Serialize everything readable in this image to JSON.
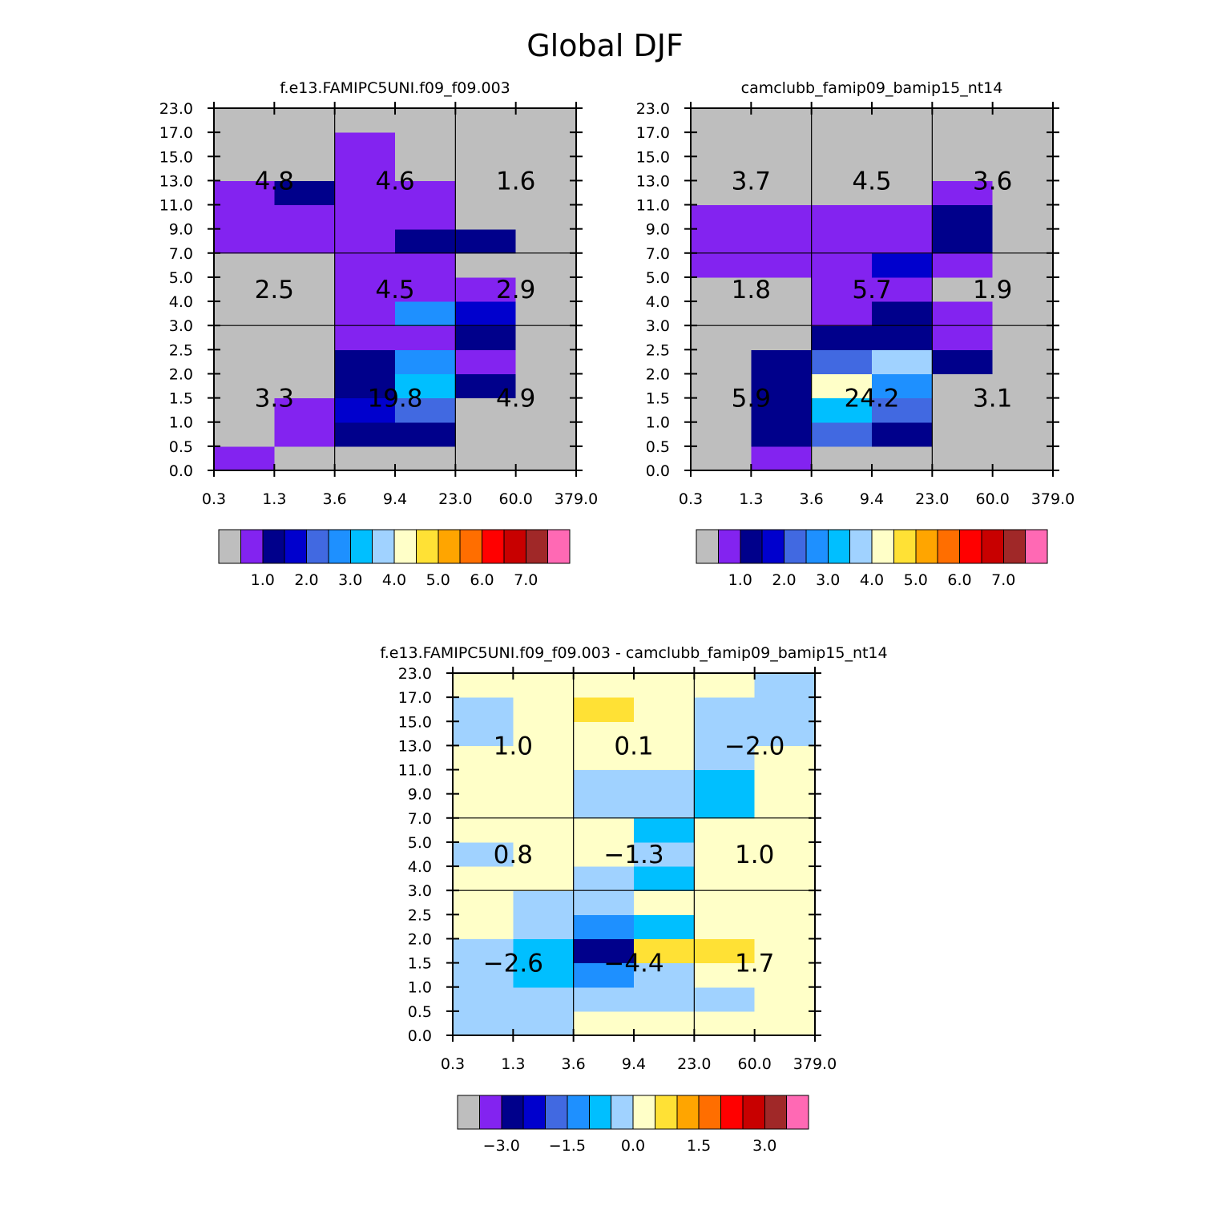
{
  "page_title": "Global DJF",
  "chart_data": [
    {
      "type": "heatmap",
      "title": "f.e13.FAMIPC5UNI.f09_f09.003",
      "x_ticks": [
        "0.3",
        "1.3",
        "3.6",
        "9.4",
        "23.0",
        "60.0",
        "379.0"
      ],
      "y_ticks": [
        "0.0",
        "0.5",
        "1.0",
        "1.5",
        "2.0",
        "2.5",
        "3.0",
        "4.0",
        "5.0",
        "7.0",
        "9.0",
        "11.0",
        "13.0",
        "15.0",
        "17.0",
        "23.0"
      ],
      "palette": [
        "#bebebe",
        "#8323f0",
        "#00008b",
        "#0000cd",
        "#4169e1",
        "#1e90ff",
        "#00bfff",
        "#a0d2ff",
        "#ffffc8",
        "#ffe135",
        "#ffa500",
        "#ff6e00",
        "#ff0000",
        "#c80000",
        "#a02828",
        "#ff69b4"
      ],
      "legend_labels": [
        "1.0",
        "2.0",
        "3.0",
        "4.0",
        "5.0",
        "6.0",
        "7.0"
      ],
      "grid": [
        [
          1,
          0,
          0,
          0,
          0,
          0
        ],
        [
          0,
          1,
          2,
          2,
          0,
          0
        ],
        [
          0,
          1,
          3,
          4,
          0,
          0
        ],
        [
          0,
          0,
          2,
          6,
          2,
          0
        ],
        [
          0,
          0,
          2,
          5,
          1,
          0
        ],
        [
          0,
          0,
          1,
          1,
          2,
          0
        ],
        [
          0,
          0,
          1,
          5,
          3,
          0
        ],
        [
          0,
          0,
          1,
          1,
          1,
          0
        ],
        [
          0,
          0,
          1,
          1,
          0,
          0
        ],
        [
          1,
          1,
          1,
          2,
          2,
          0
        ],
        [
          1,
          1,
          1,
          1,
          0,
          0
        ],
        [
          1,
          2,
          1,
          1,
          0,
          0
        ],
        [
          0,
          0,
          1,
          0,
          0,
          0
        ],
        [
          0,
          0,
          1,
          0,
          0,
          0
        ],
        [
          0,
          0,
          0,
          0,
          0,
          0
        ]
      ],
      "box_values": [
        [
          "4.8",
          "4.6",
          "1.6"
        ],
        [
          "2.5",
          "4.5",
          "2.9"
        ],
        [
          "3.3",
          "19.8",
          "4.9"
        ]
      ]
    },
    {
      "type": "heatmap",
      "title": "camclubb_famip09_bamip15_nt14",
      "x_ticks": [
        "0.3",
        "1.3",
        "3.6",
        "9.4",
        "23.0",
        "60.0",
        "379.0"
      ],
      "y_ticks": [
        "0.0",
        "0.5",
        "1.0",
        "1.5",
        "2.0",
        "2.5",
        "3.0",
        "4.0",
        "5.0",
        "7.0",
        "9.0",
        "11.0",
        "13.0",
        "15.0",
        "17.0",
        "23.0"
      ],
      "palette": [
        "#bebebe",
        "#8323f0",
        "#00008b",
        "#0000cd",
        "#4169e1",
        "#1e90ff",
        "#00bfff",
        "#a0d2ff",
        "#ffffc8",
        "#ffe135",
        "#ffa500",
        "#ff6e00",
        "#ff0000",
        "#c80000",
        "#a02828",
        "#ff69b4"
      ],
      "legend_labels": [
        "1.0",
        "2.0",
        "3.0",
        "4.0",
        "5.0",
        "6.0",
        "7.0"
      ],
      "grid": [
        [
          0,
          1,
          0,
          0,
          0,
          0
        ],
        [
          0,
          2,
          4,
          2,
          0,
          0
        ],
        [
          0,
          2,
          6,
          4,
          0,
          0
        ],
        [
          0,
          2,
          8,
          5,
          0,
          0
        ],
        [
          0,
          2,
          4,
          7,
          2,
          0
        ],
        [
          0,
          0,
          2,
          2,
          1,
          0
        ],
        [
          0,
          0,
          1,
          2,
          1,
          0
        ],
        [
          0,
          0,
          1,
          1,
          0,
          0
        ],
        [
          1,
          1,
          1,
          3,
          1,
          0
        ],
        [
          1,
          1,
          1,
          1,
          2,
          0
        ],
        [
          1,
          1,
          1,
          1,
          2,
          0
        ],
        [
          0,
          0,
          0,
          0,
          1,
          0
        ],
        [
          0,
          0,
          0,
          0,
          0,
          0
        ],
        [
          0,
          0,
          0,
          0,
          0,
          0
        ],
        [
          0,
          0,
          0,
          0,
          0,
          0
        ]
      ],
      "box_values": [
        [
          "3.7",
          "4.5",
          "3.6"
        ],
        [
          "1.8",
          "5.7",
          "1.9"
        ],
        [
          "5.9",
          "24.2",
          "3.1"
        ]
      ]
    },
    {
      "type": "heatmap",
      "title": "f.e13.FAMIPC5UNI.f09_f09.003 - camclubb_famip09_bamip15_nt14",
      "x_ticks": [
        "0.3",
        "1.3",
        "3.6",
        "9.4",
        "23.0",
        "60.0",
        "379.0"
      ],
      "y_ticks": [
        "0.0",
        "0.5",
        "1.0",
        "1.5",
        "2.0",
        "2.5",
        "3.0",
        "4.0",
        "5.0",
        "7.0",
        "9.0",
        "11.0",
        "13.0",
        "15.0",
        "17.0",
        "23.0"
      ],
      "palette": [
        "#bebebe",
        "#8323f0",
        "#00008b",
        "#0000cd",
        "#4169e1",
        "#1e90ff",
        "#00bfff",
        "#a0d2ff",
        "#ffffc8",
        "#ffe135",
        "#ffa500",
        "#ff6e00",
        "#ff0000",
        "#c80000",
        "#a02828",
        "#ff69b4"
      ],
      "legend_labels": [
        "-3.0",
        "-1.5",
        "0.0",
        "1.5",
        "3.0"
      ],
      "grid": [
        [
          7,
          7,
          8,
          8,
          8,
          8
        ],
        [
          7,
          7,
          7,
          7,
          7,
          8
        ],
        [
          7,
          6,
          5,
          7,
          8,
          8
        ],
        [
          7,
          6,
          2,
          9,
          9,
          8
        ],
        [
          8,
          7,
          5,
          6,
          8,
          8
        ],
        [
          8,
          7,
          7,
          8,
          8,
          8
        ],
        [
          8,
          8,
          7,
          6,
          8,
          8
        ],
        [
          7,
          8,
          8,
          7,
          8,
          8
        ],
        [
          8,
          8,
          8,
          6,
          8,
          8
        ],
        [
          8,
          8,
          7,
          7,
          6,
          8
        ],
        [
          8,
          8,
          7,
          7,
          6,
          8
        ],
        [
          8,
          8,
          8,
          8,
          7,
          8
        ],
        [
          7,
          8,
          8,
          8,
          7,
          7
        ],
        [
          7,
          8,
          9,
          8,
          7,
          7
        ],
        [
          8,
          8,
          8,
          8,
          8,
          7
        ]
      ],
      "box_values": [
        [
          "1.0",
          "0.1",
          "-2.0"
        ],
        [
          "0.8",
          "-1.3",
          "1.0"
        ],
        [
          "-2.6",
          "-4.4",
          "1.7"
        ]
      ]
    }
  ]
}
